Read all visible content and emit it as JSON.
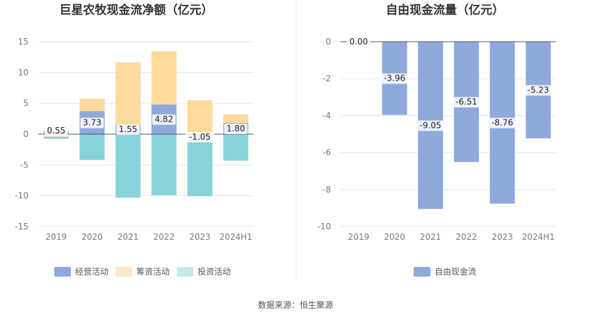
{
  "chart_data": [
    {
      "type": "bar",
      "stacked": true,
      "title": "巨星农牧现金流净额（亿元）",
      "categories": [
        "2019",
        "2020",
        "2021",
        "2022",
        "2023",
        "2024H1"
      ],
      "series": [
        {
          "name": "经营活动",
          "color": "#8eaadc",
          "values": [
            0.55,
            3.73,
            1.55,
            4.82,
            -1.05,
            1.8
          ]
        },
        {
          "name": "筹资活动",
          "color": "#fdd99b",
          "values": [
            -0.45,
            2.0,
            10.1,
            8.6,
            5.5,
            1.4
          ]
        },
        {
          "name": "投资活动",
          "color": "#86d3d8",
          "values": [
            -0.3,
            -4.2,
            -10.3,
            -9.9,
            -9.0,
            -4.3
          ]
        }
      ],
      "data_labels": [
        "0.55",
        "3.73",
        "1.55",
        "4.82",
        "-1.05",
        "1.80"
      ],
      "ylim": [
        -15,
        15
      ],
      "yticks": [
        15,
        10,
        5,
        0,
        -5,
        -10,
        -15
      ],
      "xlabel": "",
      "ylabel": "",
      "legend": "bottom"
    },
    {
      "type": "bar",
      "title": "自由现金流量（亿元）",
      "categories": [
        "2019",
        "2020",
        "2021",
        "2022",
        "2023",
        "2024H1"
      ],
      "series": [
        {
          "name": "自由现金流",
          "color": "#8eaadc",
          "values": [
            0.0,
            -3.96,
            -9.05,
            -6.51,
            -8.76,
            -5.23
          ]
        }
      ],
      "data_labels": [
        "0.00",
        "-3.96",
        "-9.05",
        "-6.51",
        "-8.76",
        "-5.23"
      ],
      "ylim": [
        -10,
        0
      ],
      "yticks": [
        0,
        -2,
        -4,
        -6,
        -8,
        -10
      ],
      "xlabel": "",
      "ylabel": "",
      "legend": "bottom"
    }
  ],
  "footer": {
    "source": "数据来源：恒生聚源"
  }
}
